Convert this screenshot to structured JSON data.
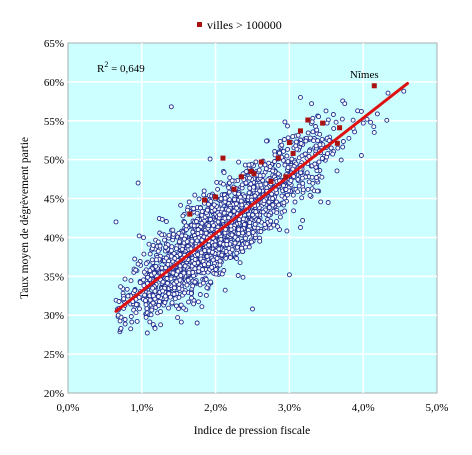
{
  "chart_data": {
    "type": "scatter",
    "title": "",
    "xlabel": "Indice de pression fiscale",
    "ylabel": "Taux moyen de dégrèvement partie",
    "xlim": [
      0,
      0.05
    ],
    "ylim": [
      0.2,
      0.65
    ],
    "x_ticks": [
      "0,0%",
      "1,0%",
      "2,0%",
      "3,0%",
      "4,0%",
      "5,0%"
    ],
    "y_ticks": [
      "20%",
      "25%",
      "30%",
      "35%",
      "40%",
      "45%",
      "50%",
      "55%",
      "60%",
      "65%"
    ],
    "grid": true,
    "legend_position": "top-center",
    "colors": {
      "plot_background": "#ccffff",
      "grid": "#ffffff",
      "communes_marker": "#1f2f8f",
      "villes_marker": "#aa1111",
      "trend_line": "#dd1111"
    },
    "series": [
      {
        "name": "",
        "marker": "hollow-circle",
        "count_estimate": 2100,
        "cloud": {
          "x_range": [
            0.0065,
            0.046
          ],
          "center": [
            0.019,
            0.395
          ],
          "note": "dense elliptical cloud following the trend line"
        },
        "notable_points": [
          {
            "x": 0.014,
            "y": 0.568
          },
          {
            "x": 0.0095,
            "y": 0.47
          },
          {
            "x": 0.03,
            "y": 0.352
          },
          {
            "x": 0.025,
            "y": 0.308
          },
          {
            "x": 0.0065,
            "y": 0.42
          },
          {
            "x": 0.0175,
            "y": 0.29
          },
          {
            "x": 0.0118,
            "y": 0.283
          },
          {
            "x": 0.0455,
            "y": 0.588
          },
          {
            "x": 0.0375,
            "y": 0.572
          },
          {
            "x": 0.041,
            "y": 0.548
          },
          {
            "x": 0.033,
            "y": 0.572
          },
          {
            "x": 0.0315,
            "y": 0.58
          },
          {
            "x": 0.036,
            "y": 0.54
          },
          {
            "x": 0.0068,
            "y": 0.3
          },
          {
            "x": 0.0415,
            "y": 0.535
          }
        ]
      },
      {
        "name": "villes > 100000",
        "marker": "filled-square",
        "points": [
          {
            "x": 0.0415,
            "y": 0.595,
            "label": "Nîmes"
          },
          {
            "x": 0.0325,
            "y": 0.551
          },
          {
            "x": 0.0345,
            "y": 0.547
          },
          {
            "x": 0.0368,
            "y": 0.541
          },
          {
            "x": 0.0365,
            "y": 0.521
          },
          {
            "x": 0.0315,
            "y": 0.537
          },
          {
            "x": 0.03,
            "y": 0.522
          },
          {
            "x": 0.0305,
            "y": 0.508
          },
          {
            "x": 0.0285,
            "y": 0.502
          },
          {
            "x": 0.0262,
            "y": 0.497
          },
          {
            "x": 0.0248,
            "y": 0.485
          },
          {
            "x": 0.0235,
            "y": 0.478
          },
          {
            "x": 0.021,
            "y": 0.502
          },
          {
            "x": 0.0225,
            "y": 0.462
          },
          {
            "x": 0.02,
            "y": 0.452
          },
          {
            "x": 0.0185,
            "y": 0.448
          },
          {
            "x": 0.0165,
            "y": 0.43
          },
          {
            "x": 0.0275,
            "y": 0.472
          },
          {
            "x": 0.0295,
            "y": 0.478
          },
          {
            "x": 0.0252,
            "y": 0.482
          }
        ]
      }
    ],
    "trendline": {
      "from": [
        0.0065,
        0.305
      ],
      "to": [
        0.046,
        0.598
      ]
    },
    "annotation": {
      "text": "R² = 0,649",
      "parts": [
        "R",
        "2",
        " = 0,649"
      ]
    }
  }
}
